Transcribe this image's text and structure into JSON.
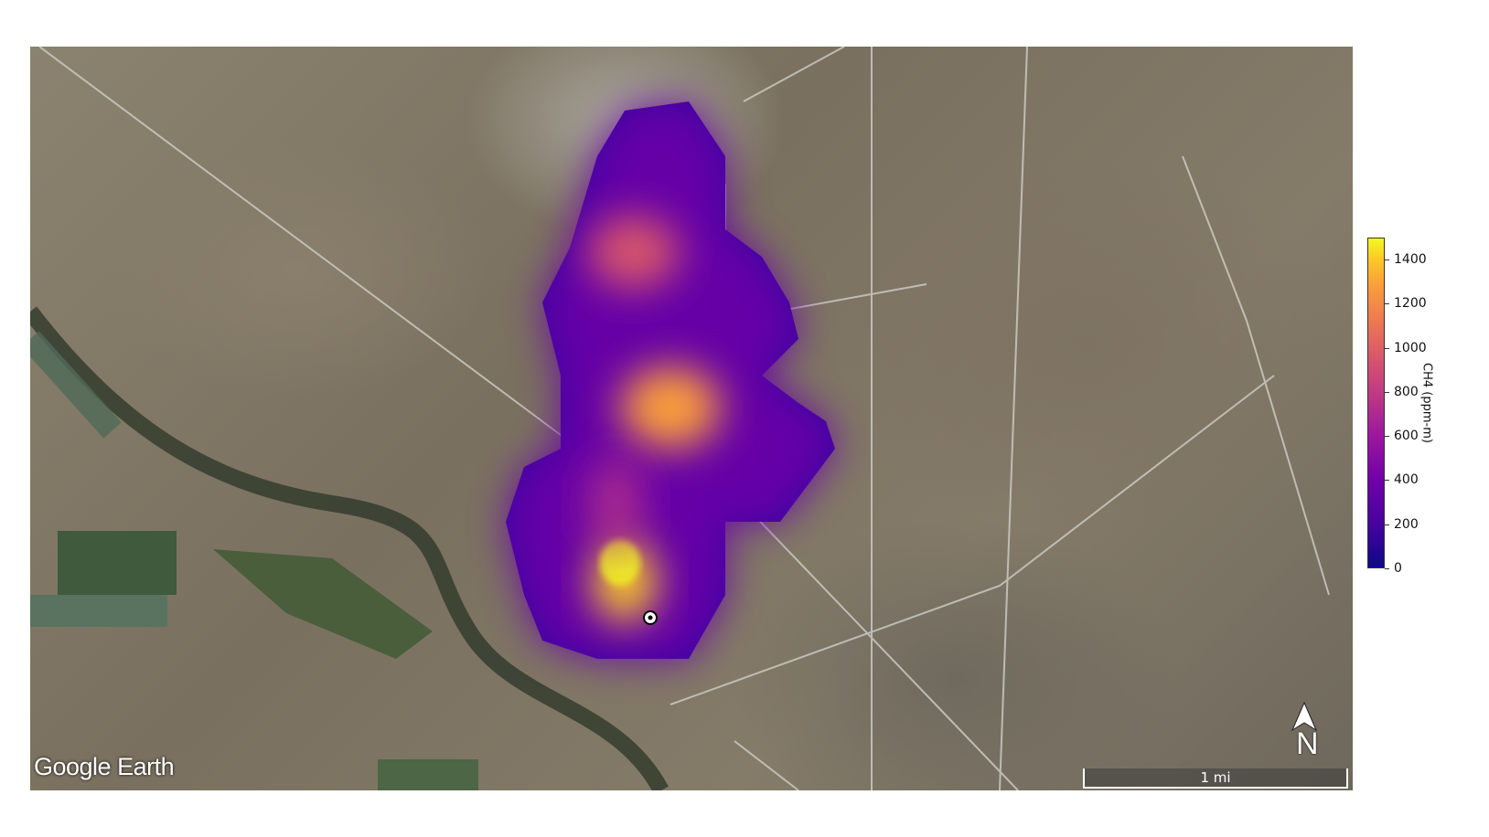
{
  "map": {
    "basemap_attribution": "Google Earth",
    "scale_bar_label": "1 mi",
    "north_arrow_label": "N",
    "source_marker_icon": "circle-dot-icon"
  },
  "colorbar": {
    "label": "CH4 (ppm-m)",
    "ticks": [
      "0",
      "200",
      "400",
      "600",
      "800",
      "1000",
      "1200",
      "1400"
    ],
    "tick_values": [
      0,
      200,
      400,
      600,
      800,
      1000,
      1200,
      1400
    ],
    "range": [
      0,
      1500
    ],
    "colormap": "plasma",
    "colors": [
      "#0d0887",
      "#7201a8",
      "#bd3786",
      "#ed7953",
      "#fdca26",
      "#f0f921"
    ]
  }
}
